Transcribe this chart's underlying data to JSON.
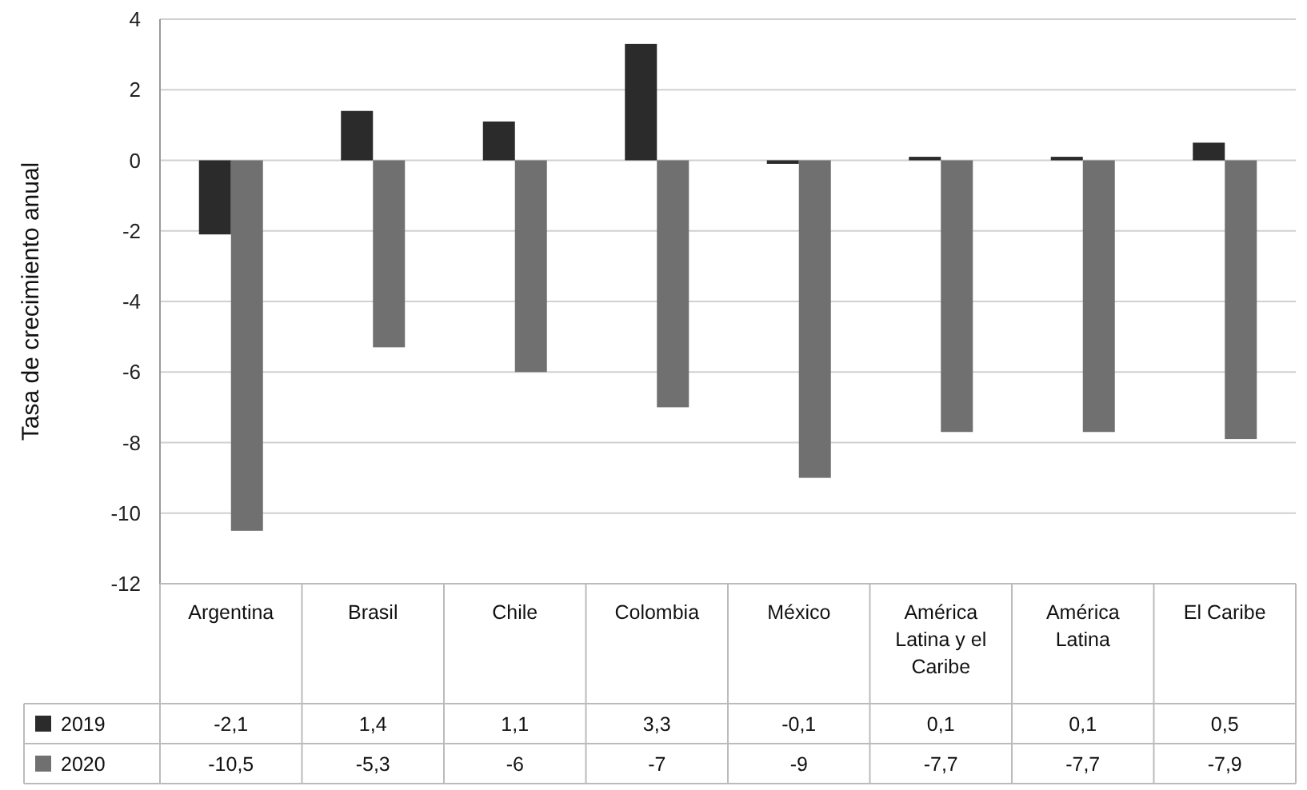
{
  "chart_data": {
    "type": "bar",
    "ylabel": "Tasa de crecimiento anual",
    "categories": [
      "Argentina",
      "Brasil",
      "Chile",
      "Colombia",
      "México",
      "América Latina y el Caribe",
      "América Latina",
      "El Caribe"
    ],
    "series": [
      {
        "name": "2019",
        "color": "#2b2b2b",
        "values": [
          -2.1,
          1.4,
          1.1,
          3.3,
          -0.1,
          0.1,
          0.1,
          0.5
        ],
        "value_labels": [
          "-2,1",
          "1,4",
          "1,1",
          "3,3",
          "-0,1",
          "0,1",
          "0,1",
          "0,5"
        ]
      },
      {
        "name": "2020",
        "color": "#707070",
        "values": [
          -10.5,
          -5.3,
          -6,
          -7,
          -9,
          -7.7,
          -7.7,
          -7.9
        ],
        "value_labels": [
          "-10,5",
          "-5,3",
          "-6",
          "-7",
          "-9",
          "-7,7",
          "-7,7",
          "-7,9"
        ]
      }
    ],
    "ylim": [
      -12,
      4
    ],
    "yticks": [
      -12,
      -10,
      -8,
      -6,
      -4,
      -2,
      0,
      2,
      4
    ],
    "grid": "y",
    "legend": "bottom"
  }
}
